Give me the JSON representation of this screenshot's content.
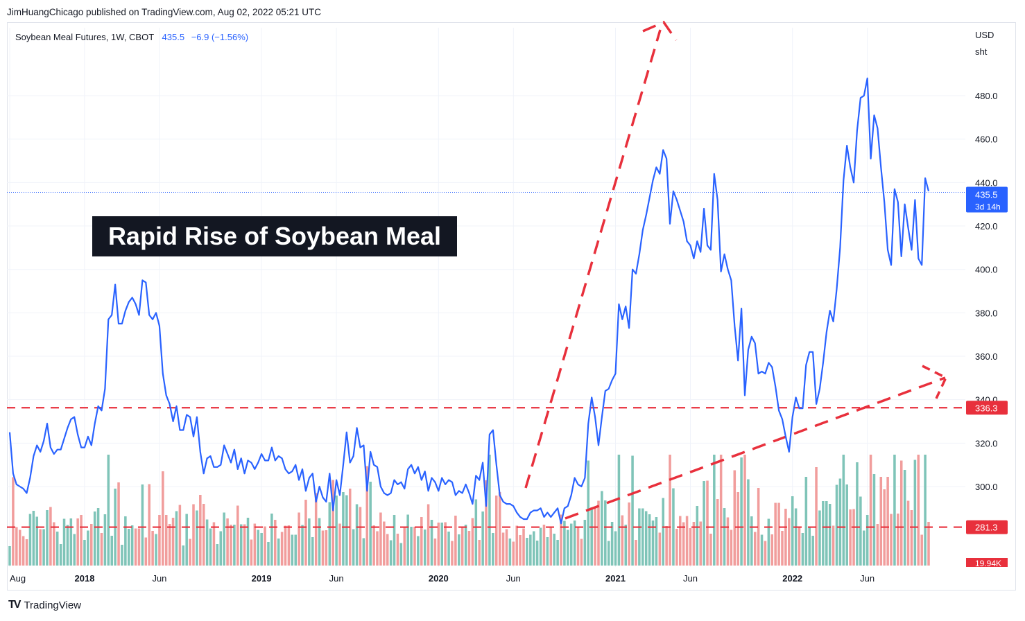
{
  "byline": "JimHuangChicago published on TradingView.com, Aug 02, 2022 05:21 UTC",
  "legend": {
    "symbol": "Soybean Meal Futures, 1W, CBOT",
    "price": "435.5",
    "change": "−6.9 (−1.56%)"
  },
  "annotation": "Rapid Rise of Soybean Meal",
  "brand": "TradingView",
  "colors": {
    "line": "#2962ff",
    "dashed": "#e8303c",
    "vol_up": "#7fc4b8",
    "vol_down": "#f19d9c",
    "price_tag": "#2962ff",
    "level_tag": "#e8303c"
  },
  "chart_data": {
    "type": "line",
    "title": "Soybean Meal Futures, 1W, CBOT",
    "y_unit_top": "USD",
    "y_unit_bottom": "sht",
    "ylim": [
      272,
      500
    ],
    "yticks": [
      300.0,
      320.0,
      340.0,
      360.0,
      380.0,
      400.0,
      420.0,
      440.0,
      460.0,
      480.0
    ],
    "ytick_labels": [
      "300.0",
      "320.0",
      "340.0",
      "360.0",
      "380.0",
      "400.0",
      "420.0",
      "440.0",
      "460.0",
      "480.0"
    ],
    "xticks": [
      {
        "label": "Aug",
        "year": false,
        "week": 0
      },
      {
        "label": "2018",
        "year": true,
        "week": 22
      },
      {
        "label": "Jun",
        "year": false,
        "week": 44
      },
      {
        "label": "2019",
        "year": true,
        "week": 74
      },
      {
        "label": "Jun",
        "year": false,
        "week": 96
      },
      {
        "label": "2020",
        "year": true,
        "week": 126
      },
      {
        "label": "Jun",
        "year": false,
        "week": 148
      },
      {
        "label": "2021",
        "year": true,
        "week": 178
      },
      {
        "label": "Jun",
        "year": false,
        "week": 200
      },
      {
        "label": "2022",
        "year": true,
        "week": 230
      },
      {
        "label": "Jun",
        "year": false,
        "week": 252
      }
    ],
    "series": [
      {
        "name": "Soybean Meal Futures",
        "values": [
          325,
          306,
          301,
          300,
          299,
          297,
          304,
          314,
          319,
          316,
          321,
          329,
          318,
          315,
          317,
          317,
          322,
          327,
          331,
          332,
          324,
          318,
          318,
          323,
          319,
          329,
          337,
          335,
          345,
          377,
          379,
          393,
          375,
          375,
          381,
          385,
          387,
          384,
          379,
          395,
          394,
          379,
          377,
          380,
          374,
          352,
          342,
          338,
          330,
          337,
          326,
          326,
          333,
          332,
          323,
          332,
          316,
          306,
          313,
          314,
          309,
          309,
          310,
          319,
          315,
          311,
          317,
          308,
          313,
          306,
          312,
          311,
          308,
          311,
          315,
          312,
          312,
          318,
          312,
          314,
          313,
          308,
          306,
          307,
          310,
          303,
          308,
          298,
          304,
          306,
          293,
          300,
          295,
          293,
          306,
          289,
          303,
          296,
          310,
          325,
          311,
          314,
          327,
          318,
          319,
          298,
          316,
          310,
          309,
          300,
          297,
          296,
          297,
          303,
          301,
          302,
          299,
          308,
          310,
          306,
          309,
          303,
          307,
          298,
          304,
          302,
          298,
          304,
          301,
          303,
          302,
          296,
          298,
          297,
          301,
          297,
          292,
          305,
          303,
          311,
          291,
          324,
          326,
          310,
          296,
          293,
          292,
          292,
          291,
          288,
          286,
          285,
          285,
          288,
          289,
          289,
          290,
          286,
          288,
          286,
          288,
          290,
          283,
          290,
          291,
          296,
          304,
          301,
          300,
          304,
          329,
          341,
          332,
          319,
          332,
          344,
          345,
          349,
          352,
          384,
          377,
          383,
          373,
          400,
          398,
          407,
          418,
          425,
          433,
          441,
          447,
          444,
          455,
          451,
          421,
          436,
          432,
          427,
          422,
          413,
          411,
          405,
          413,
          408,
          428,
          411,
          409,
          444,
          432,
          399,
          407,
          400,
          395,
          374,
          358,
          382,
          342,
          363,
          369,
          366,
          352,
          353,
          352,
          357,
          355,
          346,
          335,
          331,
          323,
          316,
          332,
          341,
          336,
          336,
          356,
          362,
          362,
          338,
          345,
          357,
          371,
          381,
          376,
          391,
          410,
          441,
          457,
          447,
          440,
          464,
          479,
          480,
          488,
          451,
          471,
          465,
          447,
          431,
          409,
          402,
          437,
          431,
          406,
          430,
          419,
          409,
          432,
          405,
          402,
          442,
          436
        ]
      }
    ],
    "volume_unit": "19.94K",
    "price_line": {
      "value": 435.5,
      "label": "435.5",
      "countdown": "3d 14h"
    },
    "levels": [
      {
        "value": 336.3,
        "label": "336.3"
      },
      {
        "value": 281.3,
        "label": "281.3"
      }
    ]
  }
}
